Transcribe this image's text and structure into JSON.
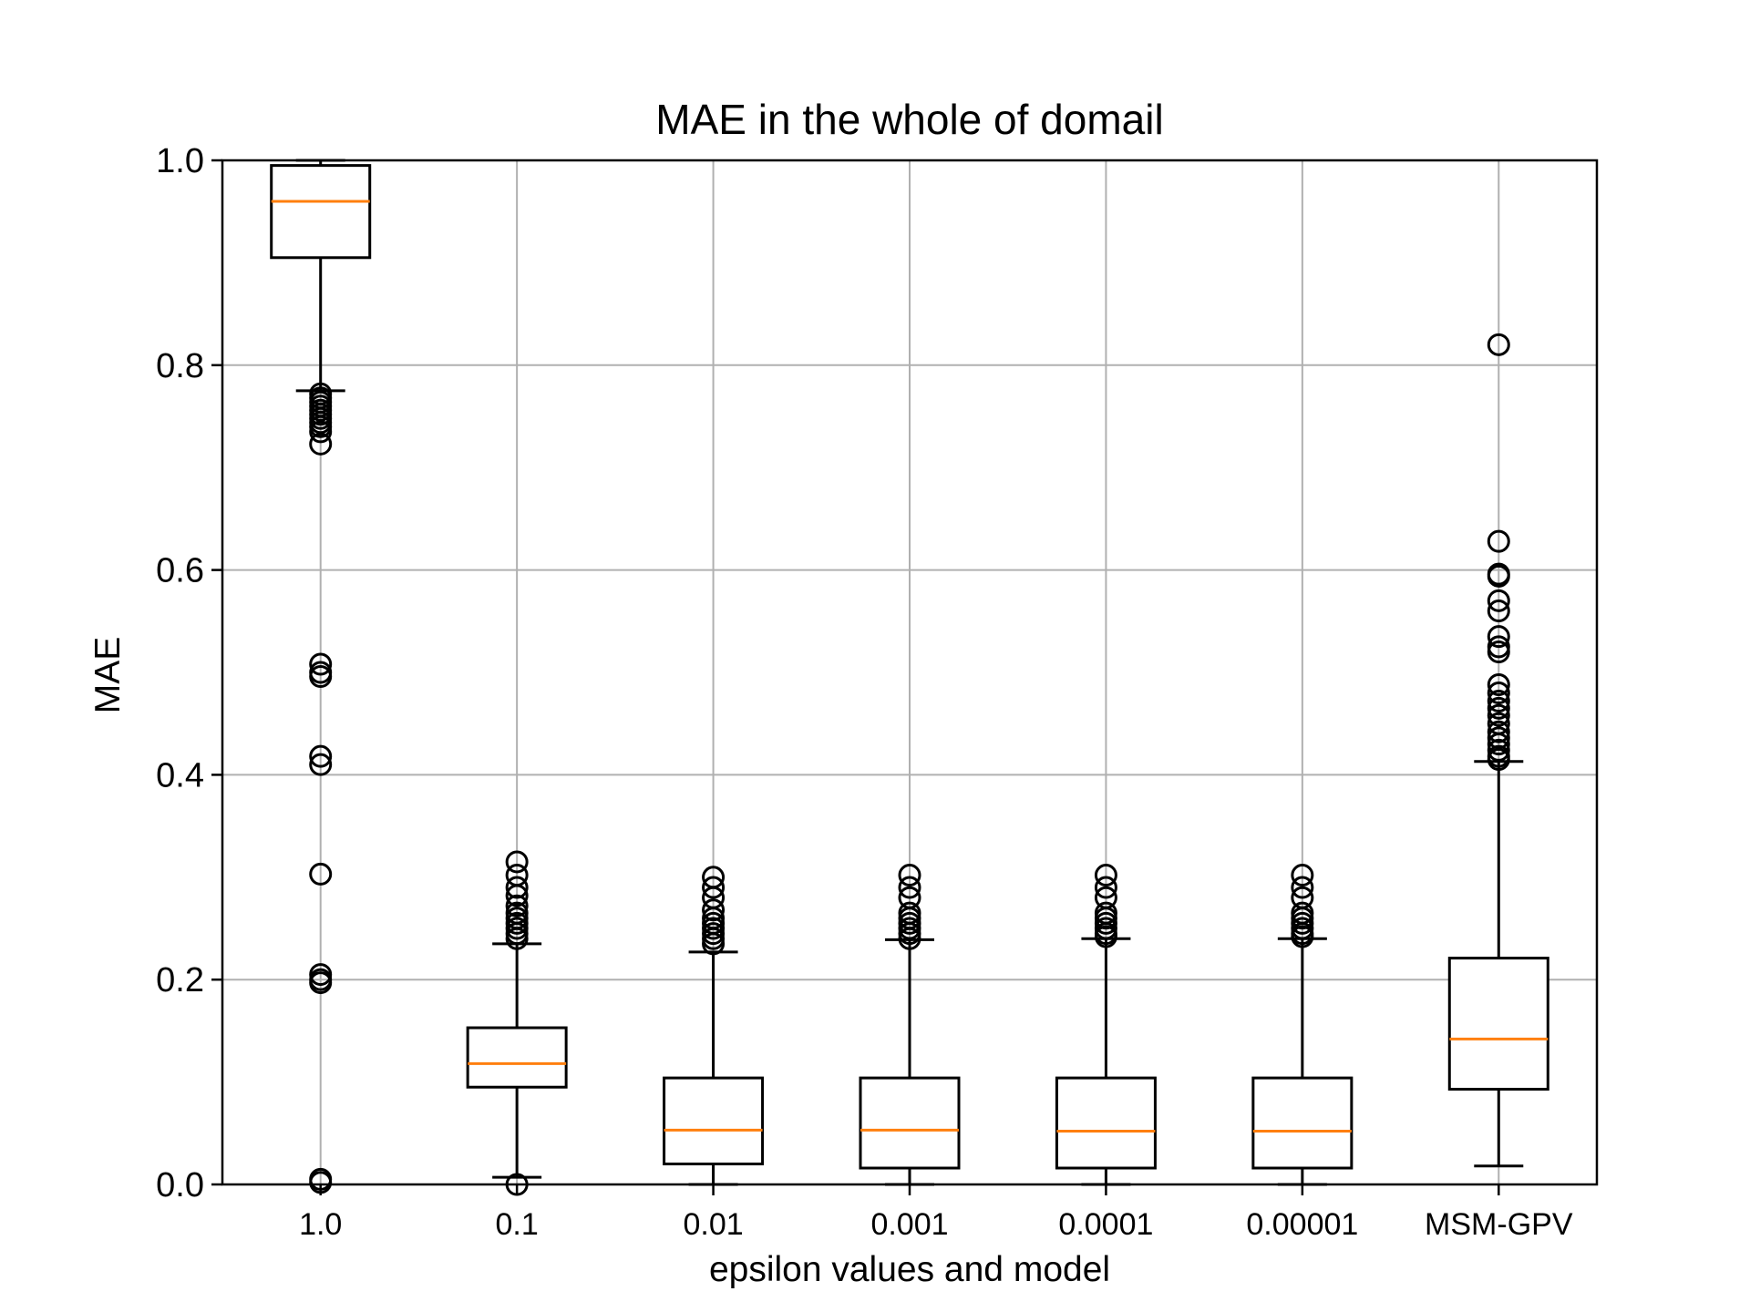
{
  "chart_data": {
    "type": "box",
    "title": "MAE in the whole of domail",
    "xlabel": "epsilon values and model",
    "ylabel": "MAE",
    "ylim": [
      0,
      1.0
    ],
    "yticks": [
      "0.0",
      "0.2",
      "0.4",
      "0.6",
      "0.8",
      "1.0"
    ],
    "grid": true,
    "categories": [
      "1.0",
      "0.1",
      "0.01",
      "0.001",
      "0.0001",
      "0.00001",
      "MSM-GPV"
    ],
    "boxes": [
      {
        "label": "1.0",
        "whisker_low": 0.775,
        "q1": 0.905,
        "median": 0.96,
        "q3": 0.995,
        "whisker_high": 1.0,
        "outliers": [
          0.772,
          0.768,
          0.764,
          0.76,
          0.756,
          0.752,
          0.748,
          0.744,
          0.74,
          0.735,
          0.723,
          0.508,
          0.5,
          0.496,
          0.418,
          0.41,
          0.303,
          0.205,
          0.2,
          0.197,
          0.005,
          0.002
        ]
      },
      {
        "label": "0.1",
        "whisker_low": 0.007,
        "q1": 0.095,
        "median": 0.118,
        "q3": 0.153,
        "whisker_high": 0.235,
        "outliers": [
          0.315,
          0.302,
          0.29,
          0.282,
          0.272,
          0.265,
          0.26,
          0.255,
          0.25,
          0.245,
          0.24,
          0.0
        ]
      },
      {
        "label": "0.01",
        "whisker_low": 0.0,
        "q1": 0.02,
        "median": 0.053,
        "q3": 0.104,
        "whisker_high": 0.227,
        "outliers": [
          0.3,
          0.29,
          0.28,
          0.268,
          0.26,
          0.255,
          0.25,
          0.245,
          0.24,
          0.235
        ]
      },
      {
        "label": "0.001",
        "whisker_low": 0.0,
        "q1": 0.016,
        "median": 0.053,
        "q3": 0.104,
        "whisker_high": 0.239,
        "outliers": [
          0.302,
          0.29,
          0.28,
          0.265,
          0.26,
          0.255,
          0.25,
          0.245,
          0.24
        ]
      },
      {
        "label": "0.0001",
        "whisker_low": 0.0,
        "q1": 0.016,
        "median": 0.052,
        "q3": 0.104,
        "whisker_high": 0.24,
        "outliers": [
          0.302,
          0.29,
          0.28,
          0.265,
          0.26,
          0.255,
          0.25,
          0.245,
          0.242
        ]
      },
      {
        "label": "0.00001",
        "whisker_low": 0.0,
        "q1": 0.016,
        "median": 0.052,
        "q3": 0.104,
        "whisker_high": 0.24,
        "outliers": [
          0.302,
          0.29,
          0.28,
          0.265,
          0.26,
          0.255,
          0.25,
          0.245,
          0.242
        ]
      },
      {
        "label": "MSM-GPV",
        "whisker_low": 0.018,
        "q1": 0.093,
        "median": 0.142,
        "q3": 0.221,
        "whisker_high": 0.413,
        "outliers": [
          0.82,
          0.628,
          0.596,
          0.594,
          0.57,
          0.56,
          0.535,
          0.525,
          0.52,
          0.488,
          0.48,
          0.472,
          0.465,
          0.458,
          0.45,
          0.442,
          0.436,
          0.43,
          0.424,
          0.418,
          0.415
        ]
      }
    ],
    "colors": {
      "box": "#000000",
      "median": "#ff7f0e",
      "grid": "#b0b0b0",
      "outlier": "#000000"
    }
  }
}
